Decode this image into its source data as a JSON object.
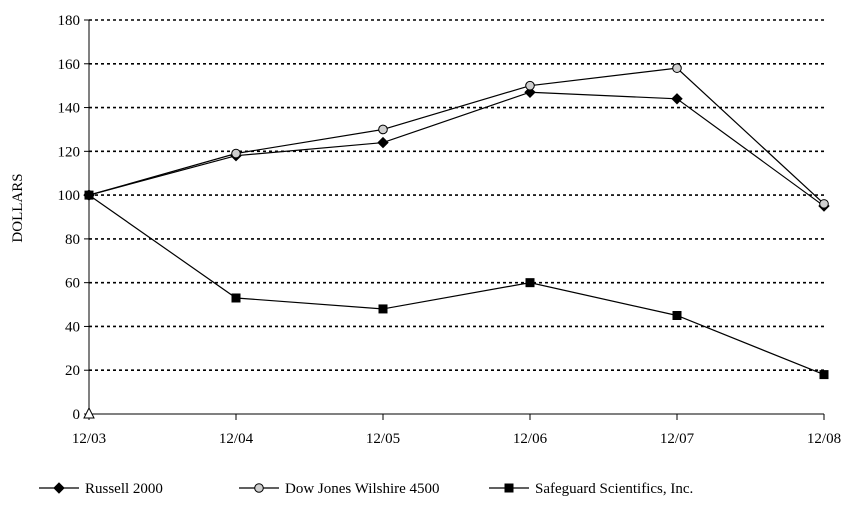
{
  "chart_data": {
    "type": "line",
    "title": "",
    "xlabel": "",
    "ylabel": "DOLLARS",
    "categories": [
      "12/03",
      "12/04",
      "12/05",
      "12/06",
      "12/07",
      "12/08"
    ],
    "ylim": [
      0,
      180
    ],
    "yticks": [
      0,
      20,
      40,
      60,
      80,
      100,
      120,
      140,
      160,
      180
    ],
    "grid": "horizontal dotted",
    "legend_position": "bottom",
    "series": [
      {
        "name": "Russell 2000",
        "marker": "diamond",
        "color": "#000000",
        "values": [
          100,
          118,
          124,
          147,
          144,
          95
        ]
      },
      {
        "name": "Dow Jones Wilshire 4500",
        "marker": "open-circle",
        "color": "#000000",
        "fill": "#cfcfcf",
        "values": [
          100,
          119,
          130,
          150,
          158,
          96
        ]
      },
      {
        "name": "Safeguard Scientifics, Inc.",
        "marker": "square",
        "color": "#000000",
        "values": [
          100,
          53,
          48,
          60,
          45,
          18
        ]
      }
    ]
  }
}
